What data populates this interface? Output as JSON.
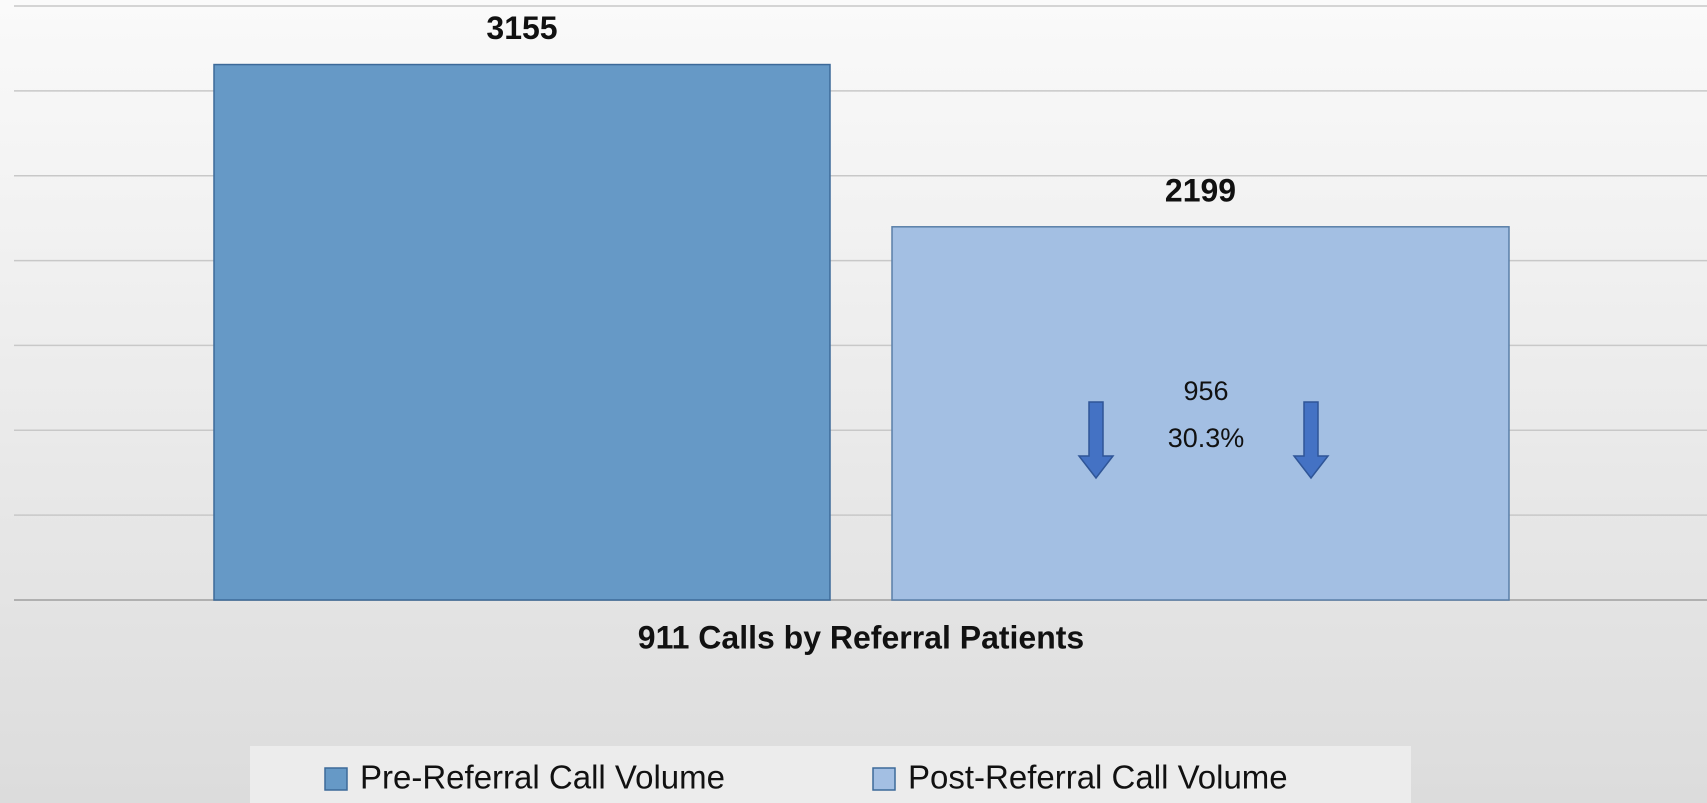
{
  "chart_data": {
    "type": "bar",
    "categories": [
      "911 Calls by Referral Patients"
    ],
    "series": [
      {
        "name": "Pre-Referral Call Volume",
        "color": "#6699c6",
        "values": [
          3155
        ]
      },
      {
        "name": "Post-Referral Call Volume",
        "color": "#a3bfe3",
        "values": [
          2199
        ]
      }
    ],
    "ylim": [
      0,
      3500
    ],
    "yticks": [
      0,
      500,
      1000,
      1500,
      2000,
      2500,
      3000,
      3500
    ],
    "grid": true,
    "annotations": [
      "956",
      "30.3%"
    ]
  }
}
